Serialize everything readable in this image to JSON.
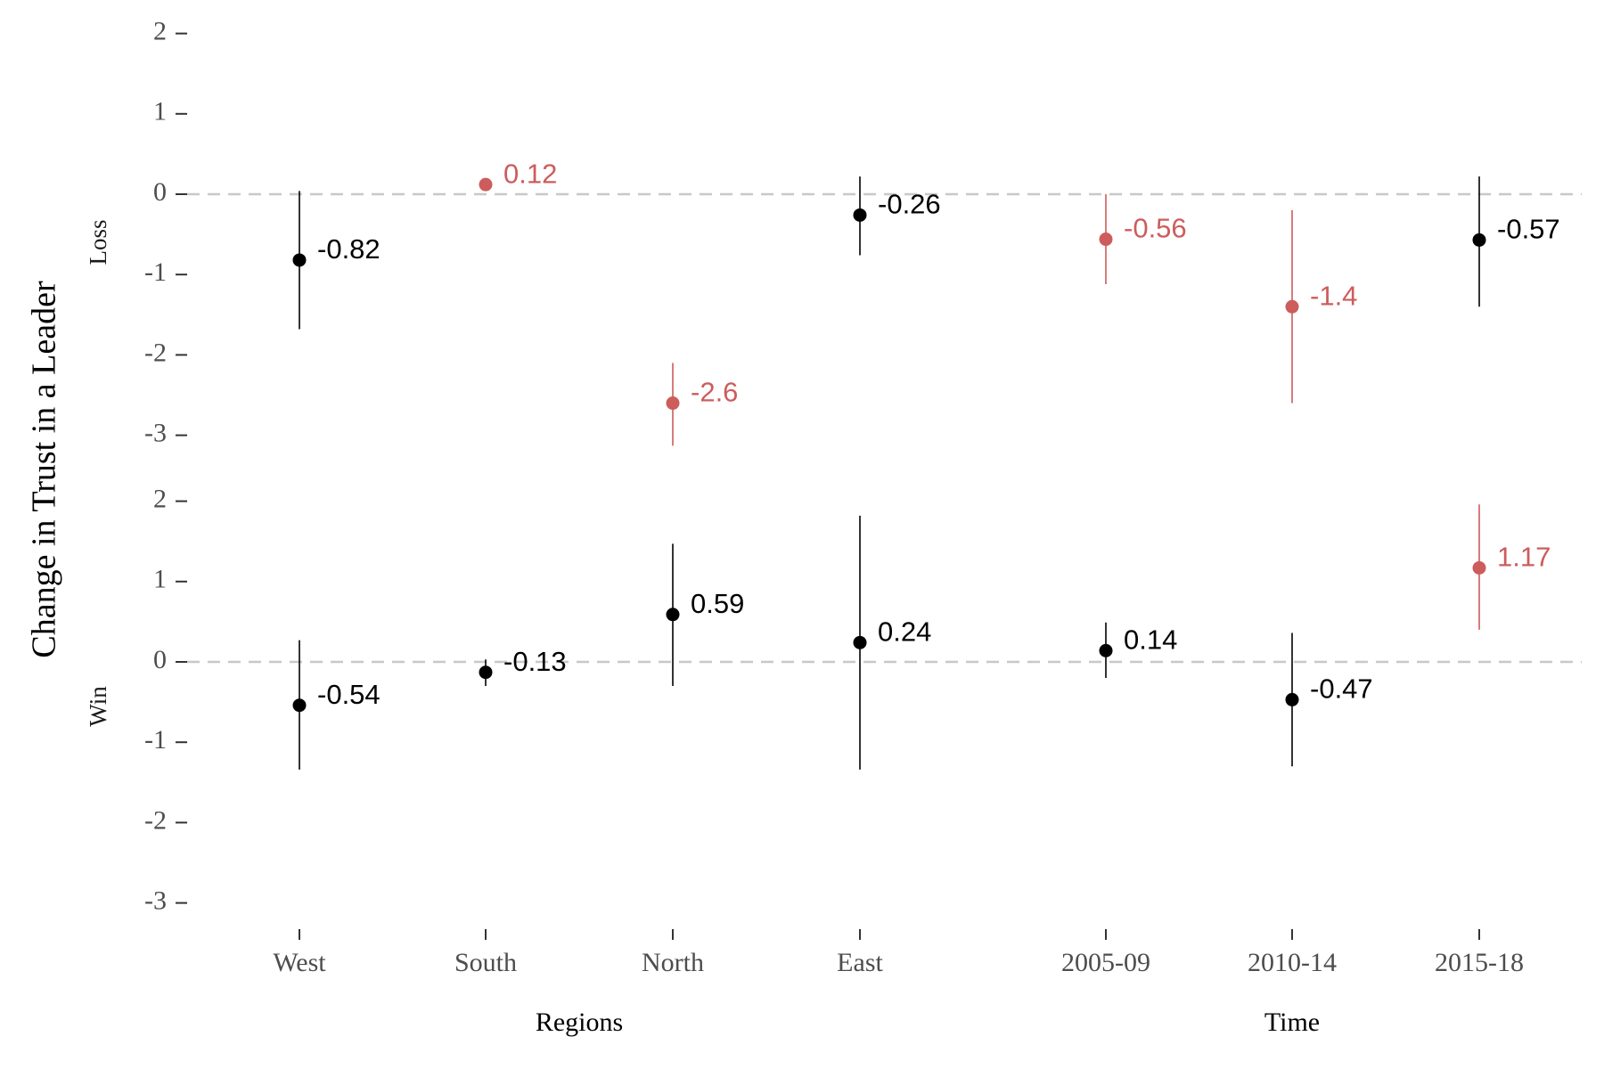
{
  "chart_data": {
    "type": "scatter",
    "subtype": "point-range (coefficient plot), faceted",
    "ylabel": "Change in Trust in a Leader",
    "facets": [
      "Loss",
      "Win"
    ],
    "ylim": [
      -3.4,
      2.3
    ],
    "yticks": [
      2,
      1,
      0,
      -1,
      -2,
      -3
    ],
    "ytick_labels": [
      "2",
      "1",
      "0",
      "-1",
      "-2",
      "-3"
    ],
    "reference_line": 0,
    "groups": [
      {
        "label": "Regions",
        "categories": [
          "West",
          "South",
          "North",
          "East"
        ]
      },
      {
        "label": "Time",
        "categories": [
          "2005-09",
          "2010-14",
          "2015-18"
        ]
      }
    ],
    "colors": {
      "not_significant": "#000000",
      "significant": "#cd5c5c",
      "zero_line": "#c8c8c8"
    },
    "series": [
      {
        "facet": "Loss",
        "points": [
          {
            "x": "West",
            "value": -0.82,
            "label": "-0.82",
            "low": -1.68,
            "high": 0.04,
            "significant": false
          },
          {
            "x": "South",
            "value": 0.12,
            "label": "0.12",
            "low": 0.1,
            "high": 0.14,
            "significant": true
          },
          {
            "x": "North",
            "value": -2.6,
            "label": "-2.6",
            "low": -3.13,
            "high": -2.1,
            "significant": true
          },
          {
            "x": "East",
            "value": -0.26,
            "label": "-0.26",
            "low": -0.76,
            "high": 0.22,
            "significant": false
          },
          {
            "x": "2005-09",
            "value": -0.56,
            "label": "-0.56",
            "low": -1.12,
            "high": 0.0,
            "significant": true
          },
          {
            "x": "2010-14",
            "value": -1.4,
            "label": "-1.4",
            "low": -2.6,
            "high": -0.2,
            "significant": true
          },
          {
            "x": "2015-18",
            "value": -0.57,
            "label": "-0.57",
            "low": -1.4,
            "high": 0.22,
            "significant": false
          }
        ]
      },
      {
        "facet": "Win",
        "points": [
          {
            "x": "West",
            "value": -0.54,
            "label": "-0.54",
            "low": -1.34,
            "high": 0.27,
            "significant": false
          },
          {
            "x": "South",
            "value": -0.13,
            "label": "-0.13",
            "low": -0.3,
            "high": 0.03,
            "significant": false
          },
          {
            "x": "North",
            "value": 0.59,
            "label": "0.59",
            "low": -0.3,
            "high": 1.47,
            "significant": false
          },
          {
            "x": "East",
            "value": 0.24,
            "label": "0.24",
            "low": -1.34,
            "high": 1.82,
            "significant": false
          },
          {
            "x": "2005-09",
            "value": 0.14,
            "label": "0.14",
            "low": -0.2,
            "high": 0.49,
            "significant": false
          },
          {
            "x": "2010-14",
            "value": -0.47,
            "label": "-0.47",
            "low": -1.3,
            "high": 0.36,
            "significant": false
          },
          {
            "x": "2015-18",
            "value": 1.17,
            "label": "1.17",
            "low": 0.4,
            "high": 1.96,
            "significant": true
          }
        ]
      }
    ]
  }
}
